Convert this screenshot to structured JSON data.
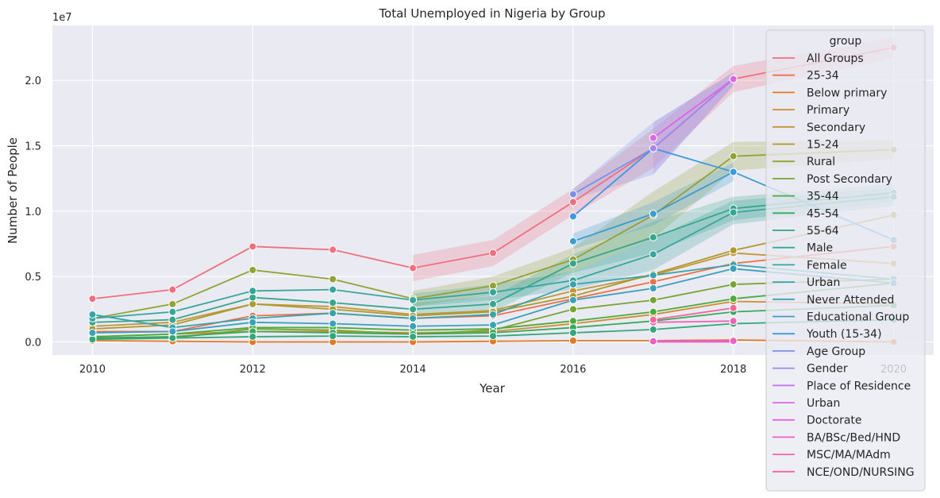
{
  "chart_data": {
    "type": "line",
    "title": "Total Unemployed in Nigeria by Group",
    "xlabel": "Year",
    "ylabel": "Number of People",
    "y_offset_label": "1e7",
    "xlim": [
      2009.5,
      2020.5
    ],
    "ylim": [
      -1000000,
      24200000
    ],
    "x_ticks": [
      2010,
      2012,
      2014,
      2016,
      2018,
      2020
    ],
    "x_tick_labels": [
      "2010",
      "2012",
      "2014",
      "2016",
      "2018",
      "2020"
    ],
    "y_ticks": [
      0,
      5000000,
      10000000,
      15000000,
      20000000
    ],
    "y_tick_labels": [
      "0.0",
      "0.5",
      "1.0",
      "1.5",
      "2.0"
    ],
    "grid": true,
    "legend_title": "group",
    "legend_position": "right",
    "series": [
      {
        "name": "All Groups",
        "color": "#f0707f",
        "x": [
          2010,
          2011,
          2012,
          2013,
          2014,
          2015,
          2016,
          2017,
          2018,
          2020
        ],
        "values": [
          3300000,
          4000000,
          7300000,
          7050000,
          5650000,
          6800000,
          10700000,
          14800000,
          20100000,
          22500000
        ],
        "band": [
          [
            2014,
            2020
          ],
          [
            1000000,
            1000000,
            1000000,
            1500000,
            1000000,
            800000
          ]
        ]
      },
      {
        "name": "25-34",
        "color": "#ec7149",
        "x": [
          2010,
          2011,
          2012,
          2013,
          2014,
          2015,
          2016,
          2017,
          2018,
          2020
        ],
        "values": [
          800000,
          800000,
          2000000,
          2200000,
          1800000,
          2000000,
          3300000,
          4600000,
          6000000,
          7300000
        ]
      },
      {
        "name": "Below primary",
        "color": "#e07a25",
        "x": [
          2010,
          2011,
          2012,
          2013,
          2014,
          2015,
          2016,
          2017,
          2018,
          2020
        ],
        "values": [
          100000,
          50000,
          0,
          0,
          0,
          50000,
          100000,
          100000,
          150000,
          0
        ]
      },
      {
        "name": "Primary",
        "color": "#d48a30",
        "x": [
          2010,
          2011,
          2012,
          2013,
          2014,
          2015,
          2016,
          2017,
          2018,
          2020
        ],
        "values": [
          400000,
          600000,
          800000,
          800000,
          700000,
          800000,
          1400000,
          2100000,
          3100000,
          2900000
        ]
      },
      {
        "name": "Secondary",
        "color": "#c39535",
        "x": [
          2010,
          2011,
          2012,
          2013,
          2014,
          2015,
          2016,
          2017,
          2018,
          2020
        ],
        "values": [
          1200000,
          1500000,
          2900000,
          2700000,
          2100000,
          2400000,
          3900000,
          5100000,
          6800000,
          6000000
        ]
      },
      {
        "name": "15-24",
        "color": "#ac9a2f",
        "x": [
          2010,
          2011,
          2012,
          2013,
          2014,
          2015,
          2016,
          2017,
          2018,
          2020
        ],
        "values": [
          1000000,
          1300000,
          2900000,
          2500000,
          2000000,
          2300000,
          3500000,
          5200000,
          7000000,
          9700000
        ]
      },
      {
        "name": "Rural",
        "color": "#92a233",
        "x": [
          2010,
          2011,
          2012,
          2013,
          2014,
          2015,
          2016,
          2017,
          2018,
          2020
        ],
        "values": [
          1800000,
          2900000,
          5500000,
          4800000,
          3300000,
          4300000,
          6300000,
          9700000,
          14200000,
          14700000
        ],
        "band": [
          [
            2014,
            2020
          ],
          [
            600000,
            700000,
            900000,
            1800000,
            1100000,
            700000
          ]
        ]
      },
      {
        "name": "Post Secondary",
        "color": "#77a534",
        "x": [
          2010,
          2011,
          2012,
          2013,
          2014,
          2015,
          2016,
          2017,
          2018,
          2020
        ],
        "values": [
          300000,
          300000,
          1000000,
          900000,
          600000,
          900000,
          2500000,
          3200000,
          4400000,
          4800000
        ]
      },
      {
        "name": "35-44",
        "color": "#4daa3d",
        "x": [
          2010,
          2011,
          2012,
          2013,
          2014,
          2015,
          2016,
          2017,
          2018,
          2020
        ],
        "values": [
          400000,
          600000,
          1100000,
          1100000,
          900000,
          1000000,
          1600000,
          2300000,
          3300000,
          4500000
        ]
      },
      {
        "name": "45-54",
        "color": "#38a95c",
        "x": [
          2010,
          2011,
          2012,
          2013,
          2014,
          2015,
          2016,
          2017,
          2018,
          2020
        ],
        "values": [
          300000,
          400000,
          800000,
          700000,
          600000,
          700000,
          1100000,
          1600000,
          2300000,
          2800000
        ]
      },
      {
        "name": "55-64",
        "color": "#35a679",
        "x": [
          2010,
          2011,
          2012,
          2013,
          2014,
          2015,
          2016,
          2017,
          2018,
          2020
        ],
        "values": [
          200000,
          300000,
          400000,
          450000,
          400000,
          450000,
          700000,
          950000,
          1400000,
          1700000
        ]
      },
      {
        "name": "Male",
        "color": "#37a68b",
        "x": [
          2010,
          2011,
          2012,
          2013,
          2014,
          2015,
          2016,
          2017,
          2018,
          2020
        ],
        "values": [
          1500000,
          1700000,
          3400000,
          3000000,
          2500000,
          2900000,
          6000000,
          8000000,
          10200000,
          11400000
        ],
        "band": [
          [
            2014,
            2020
          ],
          [
            500000,
            600000,
            700000,
            1200000,
            900000,
            700000
          ]
        ]
      },
      {
        "name": "Female",
        "color": "#38a59b",
        "x": [
          2010,
          2011,
          2012,
          2013,
          2014,
          2015,
          2016,
          2017,
          2018,
          2020
        ],
        "values": [
          1800000,
          2300000,
          3900000,
          4000000,
          3200000,
          3800000,
          4700000,
          6700000,
          9900000,
          11100000
        ],
        "band": [
          [
            2014,
            2020
          ],
          [
            500000,
            600000,
            700000,
            1200000,
            900000,
            700000
          ]
        ]
      },
      {
        "name": "Urban",
        "color": "#39a3ab",
        "x": [
          2010,
          2011,
          2012,
          2013,
          2014,
          2015,
          2016,
          2017,
          2018,
          2020
        ],
        "values": [
          2100000,
          1100000,
          1800000,
          2200000,
          1800000,
          2100000,
          4400000,
          5100000,
          5900000,
          4800000
        ]
      },
      {
        "name": "Never Attended",
        "color": "#3aa0bb",
        "x": [
          2010,
          2011,
          2012,
          2013,
          2014,
          2015,
          2016,
          2017,
          2018,
          2020
        ],
        "values": [
          700000,
          800000,
          1500000,
          1400000,
          1200000,
          1300000,
          3200000,
          4100000,
          5600000,
          4500000
        ]
      },
      {
        "name": "Educational Group",
        "color": "#3b9cce",
        "x": [
          2016,
          2017,
          2018,
          2020
        ],
        "values": [
          7700000,
          9800000,
          13000000,
          7800000
        ],
        "band": [
          [
            2016,
            2018
          ],
          [
            600000,
            900000,
            700000
          ]
        ]
      },
      {
        "name": "Youth (15-34)",
        "color": "#4098e1",
        "x": [
          2016,
          2017,
          2018
        ],
        "values": [
          9600000,
          14800000,
          13000000
        ]
      },
      {
        "name": "Age Group",
        "color": "#7c90e9",
        "x": [
          2016,
          2017,
          2018
        ],
        "values": [
          11300000,
          14800000,
          20100000
        ],
        "band": [
          [
            2016,
            2018
          ],
          [
            400000,
            2000000,
            500000
          ]
        ]
      },
      {
        "name": "Gender",
        "color": "#a586ec",
        "x": [
          2017,
          2018
        ],
        "values": [
          14800000,
          20100000
        ],
        "band": [
          [
            2017,
            2018
          ],
          [
            2000000,
            500000
          ]
        ]
      },
      {
        "name": "Place of Residence",
        "color": "#c778ef",
        "x": [
          2017,
          2018
        ],
        "values": [
          15600000,
          20100000
        ]
      },
      {
        "name": "Urban",
        "color": "#dd68e6",
        "x": [
          2017,
          2018
        ],
        "values": [
          15600000,
          20100000
        ]
      },
      {
        "name": "Doctorate",
        "color": "#e95fd7",
        "x": [
          2017,
          2018
        ],
        "values": [
          0,
          0
        ]
      },
      {
        "name": "BA/BSc/Bed/HND",
        "color": "#ee5ec8",
        "x": [
          2017,
          2018
        ],
        "values": [
          50000,
          80000
        ]
      },
      {
        "name": "MSC/MA/MAdm",
        "color": "#f063b4",
        "x": [
          2017,
          2018
        ],
        "values": [
          1500000,
          1600000
        ]
      },
      {
        "name": "NCE/OND/NURSING",
        "color": "#f0689c",
        "x": [
          2017,
          2018
        ],
        "values": [
          1700000,
          2600000
        ]
      }
    ]
  }
}
